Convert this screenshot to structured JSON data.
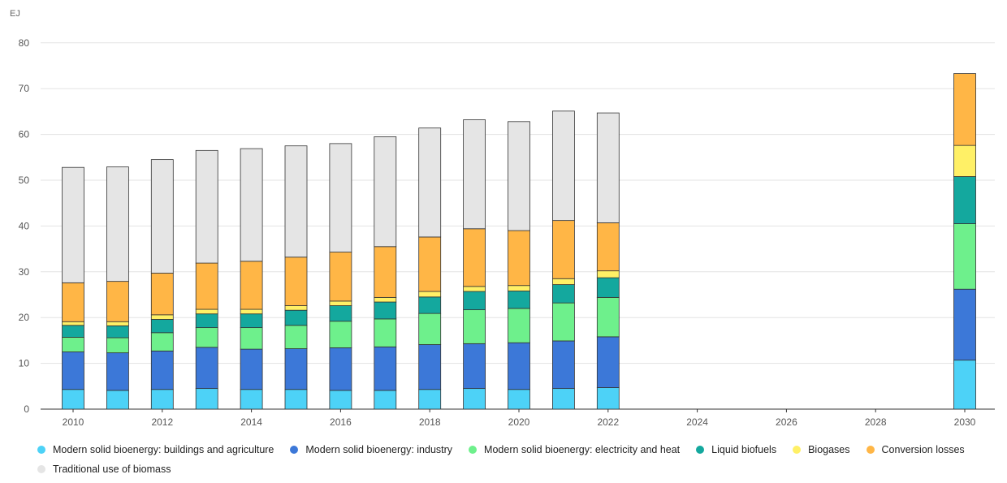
{
  "chart_data": {
    "type": "bar",
    "stacked": true,
    "unit_label": "EJ",
    "title": "",
    "xlabel": "",
    "ylabel": "",
    "ylim": [
      0,
      80
    ],
    "yticks": [
      0,
      10,
      20,
      30,
      40,
      50,
      60,
      70,
      80
    ],
    "xlim": [
      2010,
      2030
    ],
    "xticks": [
      2010,
      2012,
      2014,
      2016,
      2018,
      2020,
      2022,
      2024,
      2026,
      2028,
      2030
    ],
    "grid": true,
    "legend_position": "bottom",
    "categories": [
      2010,
      2011,
      2012,
      2013,
      2014,
      2015,
      2016,
      2017,
      2018,
      2019,
      2020,
      2021,
      2022,
      2030
    ],
    "series": [
      {
        "name": "Modern solid bioenergy: buildings and agriculture",
        "color": "#4dd2f7",
        "values": [
          4.3,
          4.1,
          4.3,
          4.5,
          4.3,
          4.3,
          4.1,
          4.1,
          4.3,
          4.5,
          4.3,
          4.5,
          4.7,
          10.7
        ]
      },
      {
        "name": "Modern solid bioenergy: industry",
        "color": "#3c78d8",
        "values": [
          8.2,
          8.2,
          8.4,
          9.0,
          8.8,
          8.9,
          9.3,
          9.5,
          9.8,
          9.8,
          10.2,
          10.4,
          11.1,
          15.5
        ]
      },
      {
        "name": "Modern solid bioenergy: electricity and heat",
        "color": "#6ef08c",
        "values": [
          3.2,
          3.3,
          4.0,
          4.3,
          4.7,
          5.1,
          5.8,
          6.1,
          6.8,
          7.4,
          7.5,
          8.3,
          8.6,
          14.3
        ]
      },
      {
        "name": "Liquid biofuels",
        "color": "#14a89e",
        "values": [
          2.6,
          2.6,
          2.9,
          3.0,
          3.0,
          3.3,
          3.4,
          3.7,
          3.6,
          4.0,
          3.8,
          4.0,
          4.3,
          10.3
        ]
      },
      {
        "name": "Biogases",
        "color": "#fff066",
        "values": [
          0.8,
          0.9,
          1.0,
          1.0,
          1.0,
          1.0,
          1.0,
          1.0,
          1.2,
          1.1,
          1.2,
          1.3,
          1.5,
          6.8
        ]
      },
      {
        "name": "Conversion losses",
        "color": "#ffb646",
        "values": [
          8.5,
          8.8,
          9.1,
          10.1,
          10.5,
          10.6,
          10.7,
          11.1,
          11.9,
          12.6,
          12.0,
          12.7,
          10.5,
          15.7
        ]
      },
      {
        "name": "Traditional use of biomass",
        "color": "#e5e5e5",
        "values": [
          25.2,
          25.0,
          24.8,
          24.6,
          24.6,
          24.3,
          23.7,
          24.0,
          23.8,
          23.8,
          23.8,
          23.9,
          24.0,
          0
        ]
      }
    ]
  }
}
